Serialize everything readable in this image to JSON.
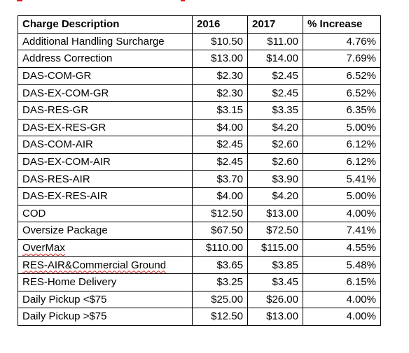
{
  "table": {
    "headers": [
      "Charge Description",
      "2016",
      "2017",
      "% Increase"
    ],
    "rows": [
      [
        "Additional Handling Surcharge",
        "$10.50",
        "$11.00",
        "4.76%"
      ],
      [
        "Address Correction",
        "$13.00",
        "$14.00",
        "7.69%"
      ],
      [
        "DAS-COM-GR",
        "$2.30",
        "$2.45",
        "6.52%"
      ],
      [
        "DAS-EX-COM-GR",
        "$2.30",
        "$2.45",
        "6.52%"
      ],
      [
        "DAS-RES-GR",
        "$3.15",
        "$3.35",
        "6.35%"
      ],
      [
        "DAS-EX-RES-GR",
        "$4.00",
        "$4.20",
        "5.00%"
      ],
      [
        "DAS-COM-AIR",
        "$2.45",
        "$2.60",
        "6.12%"
      ],
      [
        "DAS-EX-COM-AIR",
        "$2.45",
        "$2.60",
        "6.12%"
      ],
      [
        "DAS-RES-AIR",
        "$3.70",
        "$3.90",
        "5.41%"
      ],
      [
        "DAS-EX-RES-AIR",
        "$4.00",
        "$4.20",
        "5.00%"
      ],
      [
        "COD",
        "$12.50",
        "$13.00",
        "4.00%"
      ],
      [
        "Oversize Package",
        "$67.50",
        "$72.50",
        "7.41%"
      ],
      [
        "OverMax",
        "$110.00",
        "$115.00",
        "4.55%"
      ],
      [
        "RES-AIR&Commercial Ground",
        "$3.65",
        "$3.85",
        "5.48%"
      ],
      [
        "RES-Home Delivery",
        "$3.25",
        "$3.45",
        "6.15%"
      ],
      [
        "Daily Pickup <$75",
        "$25.00",
        "$26.00",
        "4.00%"
      ],
      [
        "Daily Pickup >$75",
        "$12.50",
        "$13.00",
        "4.00%"
      ]
    ],
    "spellcheck_flagged": [
      "OverMax",
      "RES-AIR&Commercial Ground"
    ]
  },
  "colors": {
    "border": "#000000",
    "text": "#000000",
    "spellcheck_underline": "#d02020",
    "top_fragment": "#e21b1b"
  }
}
